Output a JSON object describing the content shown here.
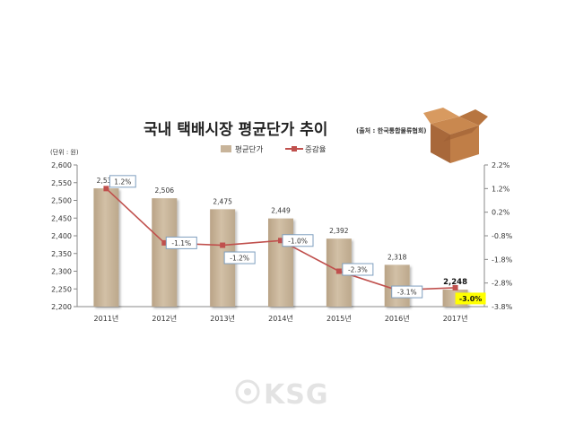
{
  "chart_data": {
    "type": "bar",
    "title": "국내 택배시장 평균단가 추이",
    "source_note": "(출처 : 한국통합물류협회)",
    "unit_label": "(단위 : 원)",
    "categories": [
      "2011년",
      "2012년",
      "2013년",
      "2014년",
      "2015년",
      "2016년",
      "2017년"
    ],
    "series": [
      {
        "name": "평균단가",
        "type": "bar",
        "axis": "left",
        "values": [
          2534,
          2506,
          2475,
          2449,
          2392,
          2318,
          2248
        ],
        "labels": [
          "2,534",
          "2,506",
          "2,475",
          "2,449",
          "2,392",
          "2,318",
          "2,248"
        ],
        "color": "#c8b49a"
      },
      {
        "name": "증감율",
        "type": "line",
        "axis": "right",
        "values": [
          1.2,
          -1.1,
          -1.2,
          -1.0,
          -2.3,
          -3.1,
          -3.0
        ],
        "labels": [
          "1.2%",
          "-1.1%",
          "-1.2%",
          "-1.0%",
          "-2.3%",
          "-3.1%",
          "-3.0%"
        ],
        "color": "#c0504d"
      }
    ],
    "ylim_left": [
      2200,
      2600
    ],
    "yticks_left": [
      "2,200",
      "2,250",
      "2,300",
      "2,350",
      "2,400",
      "2,450",
      "2,500",
      "2,550",
      "2,600"
    ],
    "ylim_right": [
      -3.8,
      2.2
    ],
    "yticks_right": [
      "-3.8%",
      "-2.8%",
      "-1.8%",
      "-0.8%",
      "0.2%",
      "1.2%",
      "2.2%"
    ],
    "grid": false,
    "legend_position": "top",
    "highlight_last": true,
    "highlight_color": "#ffff00"
  },
  "watermark": "KSG"
}
